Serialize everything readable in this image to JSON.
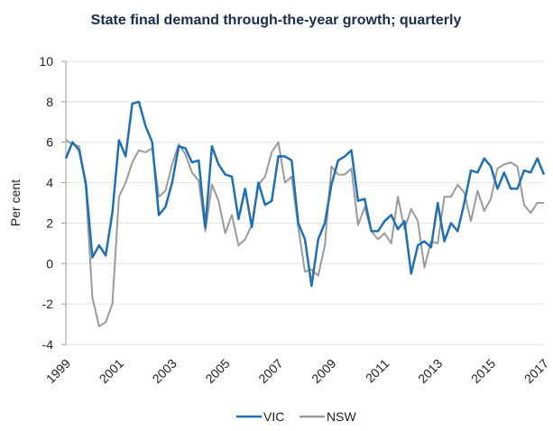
{
  "chart_data": {
    "type": "line",
    "title": "State final demand through-the-year growth; quarterly",
    "y_label": "Per cent",
    "categories": [
      "1999",
      null,
      null,
      null,
      null,
      null,
      null,
      null,
      "2001",
      null,
      null,
      null,
      null,
      null,
      null,
      null,
      "2003",
      null,
      null,
      null,
      null,
      null,
      null,
      null,
      "2005",
      null,
      null,
      null,
      null,
      null,
      null,
      null,
      "2007",
      null,
      null,
      null,
      null,
      null,
      null,
      null,
      "2009",
      null,
      null,
      null,
      null,
      null,
      null,
      null,
      "2011",
      null,
      null,
      null,
      null,
      null,
      null,
      null,
      "2013",
      null,
      null,
      null,
      null,
      null,
      null,
      null,
      "2015",
      null,
      null,
      null,
      null,
      null,
      null,
      null,
      "2017"
    ],
    "series": [
      {
        "name": "VIC",
        "color": "#1f6fb5",
        "values": [
          5.2,
          6.0,
          5.6,
          4.0,
          0.3,
          0.9,
          0.4,
          2.5,
          6.1,
          5.3,
          7.9,
          8.0,
          6.8,
          6.0,
          2.4,
          2.8,
          4.0,
          5.8,
          5.7,
          5.0,
          5.1,
          1.8,
          5.8,
          4.9,
          4.4,
          4.3,
          2.2,
          3.7,
          1.8,
          4.0,
          2.9,
          3.1,
          5.3,
          5.3,
          5.1,
          2.0,
          1.2,
          -1.1,
          1.2,
          2.0,
          3.9,
          5.1,
          5.3,
          5.6,
          3.1,
          3.2,
          1.6,
          1.6,
          2.1,
          2.4,
          1.7,
          2.1,
          -0.5,
          0.9,
          1.1,
          0.8,
          3.0,
          1.1,
          2.0,
          1.6,
          3.0,
          4.6,
          4.5,
          5.2,
          4.8,
          3.7,
          4.5,
          3.7,
          3.7,
          4.6,
          4.5,
          5.2,
          4.4
        ]
      },
      {
        "name": "NSW",
        "color": "#9a9a9a",
        "values": [
          6.1,
          5.9,
          5.8,
          3.8,
          -1.7,
          -3.1,
          -2.9,
          -2.0,
          3.3,
          4.0,
          5.0,
          5.6,
          5.5,
          5.7,
          3.3,
          3.6,
          4.9,
          5.9,
          5.4,
          4.5,
          4.1,
          1.6,
          3.9,
          3.1,
          1.5,
          2.4,
          0.9,
          1.2,
          1.9,
          3.9,
          4.3,
          5.5,
          6.0,
          4.0,
          4.3,
          1.8,
          -0.4,
          -0.3,
          -0.6,
          0.9,
          4.8,
          4.4,
          4.4,
          4.7,
          1.9,
          2.8,
          1.6,
          1.2,
          1.5,
          1.0,
          3.3,
          1.7,
          2.7,
          2.1,
          -0.2,
          1.1,
          1.0,
          3.3,
          3.3,
          3.9,
          3.5,
          2.1,
          3.6,
          2.6,
          3.2,
          4.7,
          4.9,
          5.0,
          4.8,
          2.9,
          2.5,
          3.0,
          3.0
        ]
      }
    ],
    "ylim": [
      -4,
      10
    ],
    "yticks": [
      -4,
      -2,
      0,
      2,
      4,
      6,
      8,
      10
    ],
    "grid": true
  }
}
